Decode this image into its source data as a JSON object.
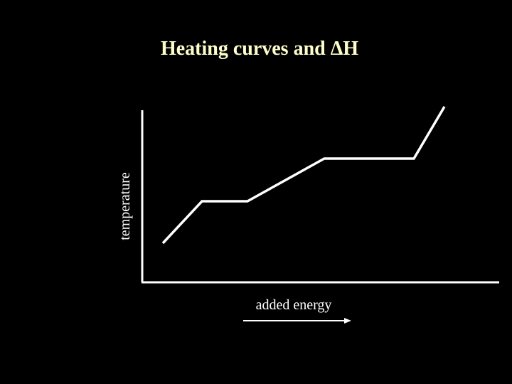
{
  "title": "Heating curves and ΔH",
  "y_axis_label": "temperature",
  "x_axis_label": "added energy"
}
